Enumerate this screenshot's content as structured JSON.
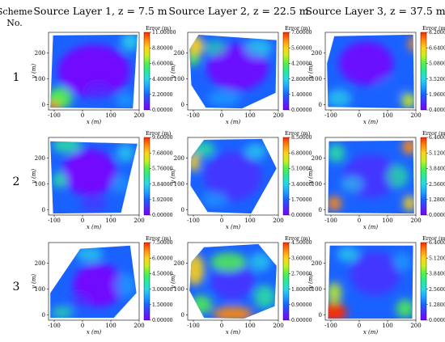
{
  "header": {
    "scheme_label_line1": "Scheme",
    "scheme_label_line2": "No.",
    "columns": [
      "Source Layer 1, z = 7.5 m",
      "Source Layer 2, z = 22.5 m",
      "Source Layer 3, z = 37.5 m"
    ]
  },
  "rows": [
    "1",
    "2",
    "3"
  ],
  "axes": {
    "xlabel": "x (m)",
    "ylabel": "y (m)",
    "xticks": [
      "-100",
      "0",
      "100",
      "200"
    ],
    "yticks": [
      "0",
      "100",
      "200"
    ],
    "colorbar_title": "Error (m)"
  },
  "colors": {
    "colormap": [
      "#7a00ff",
      "#4b2fff",
      "#1a62ff",
      "#1fa3ff",
      "#29d7e8",
      "#29e89a",
      "#52f04d",
      "#c8f021",
      "#ffd21a",
      "#ff8a10",
      "#ff2a00"
    ]
  },
  "chart_data": [
    {
      "type": "heatmap",
      "row": 1,
      "column": 1,
      "title": "Source Layer 1, z = 7.5 m",
      "xlabel": "x (m)",
      "ylabel": "y (m)",
      "xlim": [
        -120,
        200
      ],
      "ylim": [
        -20,
        280
      ],
      "colorbar_title": "Error (m)",
      "colorbar_ticks": [
        "11.00000",
        "8.80000",
        "6.60000",
        "4.40000",
        "2.20000",
        "0.00000"
      ],
      "colorbar_range": [
        0,
        11
      ]
    },
    {
      "type": "heatmap",
      "row": 1,
      "column": 2,
      "title": "Source Layer 2, z = 22.5 m",
      "xlabel": "x (m)",
      "ylabel": "y (m)",
      "xlim": [
        -120,
        200
      ],
      "ylim": [
        -20,
        280
      ],
      "colorbar_title": "Error (m)",
      "colorbar_ticks": [
        "7.00000",
        "5.60000",
        "4.20000",
        "2.80000",
        "1.40000",
        "0.00000"
      ],
      "colorbar_range": [
        0,
        7
      ]
    },
    {
      "type": "heatmap",
      "row": 1,
      "column": 3,
      "title": "Source Layer 3, z = 37.5 m",
      "xlabel": "x (m)",
      "ylabel": "y (m)",
      "xlim": [
        -120,
        200
      ],
      "ylim": [
        -20,
        280
      ],
      "colorbar_title": "Error (m)",
      "colorbar_ticks": [
        "8.20000",
        "6.64000",
        "5.08000",
        "3.52000",
        "1.96000",
        "0.40000"
      ],
      "colorbar_range": [
        0.4,
        8.2
      ]
    },
    {
      "type": "heatmap",
      "row": 2,
      "column": 1,
      "title": "Source Layer 1, z = 7.5 m",
      "xlabel": "x (m)",
      "ylabel": "y (m)",
      "xlim": [
        -120,
        200
      ],
      "ylim": [
        -20,
        280
      ],
      "colorbar_title": "Error (m)",
      "colorbar_ticks": [
        "9.60000",
        "7.68000",
        "5.76000",
        "3.84000",
        "1.92000",
        "0.00000"
      ],
      "colorbar_range": [
        0,
        9.6
      ]
    },
    {
      "type": "heatmap",
      "row": 2,
      "column": 2,
      "title": "Source Layer 2, z = 22.5 m",
      "xlabel": "x (m)",
      "ylabel": "y (m)",
      "xlim": [
        -120,
        200
      ],
      "ylim": [
        -20,
        280
      ],
      "colorbar_title": "Error (m)",
      "colorbar_ticks": [
        "8.50000",
        "6.80000",
        "5.10000",
        "3.40000",
        "1.70000",
        "0.00000"
      ],
      "colorbar_range": [
        0,
        8.5
      ]
    },
    {
      "type": "heatmap",
      "row": 2,
      "column": 3,
      "title": "Source Layer 3, z = 37.5 m",
      "xlabel": "x (m)",
      "ylabel": "y (m)",
      "xlim": [
        -120,
        200
      ],
      "ylim": [
        -20,
        280
      ],
      "colorbar_title": "Error (m)",
      "colorbar_ticks": [
        "6.40000",
        "5.12000",
        "3.84000",
        "2.56000",
        "1.28000",
        "0.00000"
      ],
      "colorbar_range": [
        0,
        6.4
      ]
    },
    {
      "type": "heatmap",
      "row": 3,
      "column": 1,
      "title": "Source Layer 1, z = 7.5 m",
      "xlabel": "x (m)",
      "ylabel": "y (m)",
      "xlim": [
        -120,
        200
      ],
      "ylim": [
        -20,
        280
      ],
      "colorbar_title": "Error (m)",
      "colorbar_ticks": [
        "7.50000",
        "6.00000",
        "4.50000",
        "3.00000",
        "1.50000",
        "0.00000"
      ],
      "colorbar_range": [
        0,
        7.5
      ]
    },
    {
      "type": "heatmap",
      "row": 3,
      "column": 2,
      "title": "Source Layer 2, z = 22.5 m",
      "xlabel": "x (m)",
      "ylabel": "y (m)",
      "xlim": [
        -120,
        200
      ],
      "ylim": [
        -20,
        280
      ],
      "colorbar_title": "Error (m)",
      "colorbar_ticks": [
        "4.50000",
        "3.60000",
        "2.70000",
        "1.80000",
        "0.90000",
        "0.00000"
      ],
      "colorbar_range": [
        0,
        4.5
      ]
    },
    {
      "type": "heatmap",
      "row": 3,
      "column": 3,
      "title": "Source Layer 3, z = 37.5 m",
      "xlabel": "x (m)",
      "ylabel": "y (m)",
      "xlim": [
        -120,
        200
      ],
      "ylim": [
        -20,
        280
      ],
      "colorbar_title": "Error (m)",
      "colorbar_ticks": [
        "6.40000",
        "5.12000",
        "3.84000",
        "2.56000",
        "1.28000",
        "0.00000"
      ],
      "colorbar_range": [
        0,
        6.4
      ]
    }
  ]
}
